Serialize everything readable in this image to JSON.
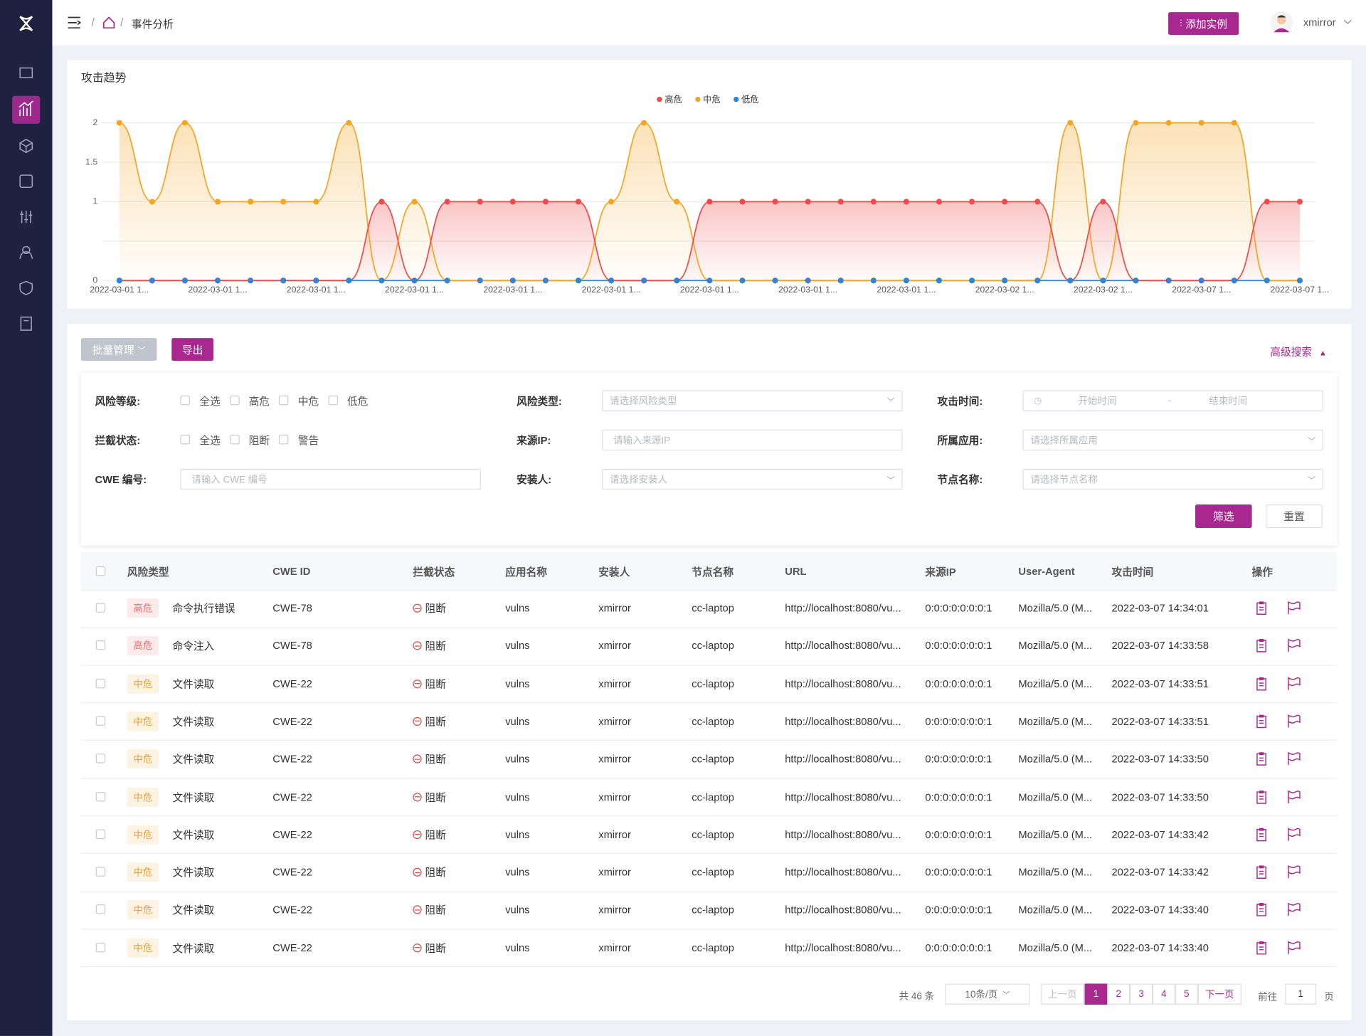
{
  "header": {
    "breadcrumb": "事件分析",
    "add_button": "添加实例",
    "user": "xmirror"
  },
  "chart_data": {
    "type": "line",
    "title": "攻击趋势",
    "categories": [
      "2022-03-01 1...",
      null,
      null,
      "2022-03-01 1...",
      null,
      null,
      "2022-03-01 1...",
      null,
      null,
      "2022-03-01 1...",
      null,
      null,
      "2022-03-01 1...",
      null,
      null,
      "2022-03-01 1...",
      null,
      null,
      "2022-03-01 1...",
      null,
      null,
      "2022-03-01 1...",
      null,
      null,
      "2022-03-01 1...",
      null,
      null,
      "2022-03-02 1...",
      null,
      null,
      "2022-03-02 1...",
      null,
      null,
      "2022-03-07 1...",
      null,
      null,
      "2022-03-07 1..."
    ],
    "series": [
      {
        "name": "高危",
        "color": "#ee4b4b",
        "values": [
          0,
          0,
          0,
          0,
          0,
          0,
          0,
          0,
          1,
          0,
          1,
          1,
          1,
          1,
          1,
          0,
          0,
          0,
          1,
          1,
          1,
          1,
          1,
          1,
          1,
          1,
          1,
          1,
          1,
          0,
          1,
          0,
          0,
          0,
          0,
          1,
          1
        ]
      },
      {
        "name": "中危",
        "color": "#f5a524",
        "values": [
          2,
          1,
          2,
          1,
          1,
          1,
          1,
          2,
          0,
          1,
          0,
          0,
          0,
          0,
          0,
          1,
          2,
          1,
          0,
          0,
          0,
          0,
          0,
          0,
          0,
          0,
          0,
          0,
          0,
          2,
          0,
          2,
          2,
          2,
          2,
          0,
          0
        ]
      },
      {
        "name": "低危",
        "color": "#2b86e0",
        "values": [
          0,
          0,
          0,
          0,
          0,
          0,
          0,
          0,
          0,
          0,
          0,
          0,
          0,
          0,
          0,
          0,
          0,
          0,
          0,
          0,
          0,
          0,
          0,
          0,
          0,
          0,
          0,
          0,
          0,
          0,
          0,
          0,
          0,
          0,
          0,
          0,
          0
        ]
      }
    ],
    "ylim": [
      0,
      2
    ],
    "yticks": [
      0,
      1,
      1.5,
      2
    ],
    "grid_values": [
      0,
      0.5,
      1,
      1.5,
      2
    ],
    "grid": true,
    "legend": "top",
    "smooth": true
  },
  "toolbar": {
    "batch": "批量管理",
    "export": "导出",
    "advanced": "高级搜索"
  },
  "filters": {
    "risk_level": {
      "label": "风险等级:",
      "options": [
        "全选",
        "高危",
        "中危",
        "低危"
      ]
    },
    "intercept": {
      "label": "拦截状态:",
      "options": [
        "全选",
        "阻断",
        "警告"
      ]
    },
    "cwe": {
      "label": "CWE 编号:",
      "placeholder": "请输入 CWE 编号"
    },
    "risk_type": {
      "label": "风险类型:",
      "placeholder": "请选择风险类型"
    },
    "source_ip": {
      "label": "来源IP:",
      "placeholder": "请输入来源IP"
    },
    "installer": {
      "label": "安装人:",
      "placeholder": "请选择安装人"
    },
    "attack_time": {
      "label": "攻击时间:",
      "start": "开始时间",
      "sep": "-",
      "end": "结束时间"
    },
    "app": {
      "label": "所属应用:",
      "placeholder": "请选择所属应用"
    },
    "node": {
      "label": "节点名称:",
      "placeholder": "请选择节点名称"
    },
    "filter_button": "筛选",
    "reset_button": "重置"
  },
  "table": {
    "columns": [
      "风险类型",
      "CWE ID",
      "拦截状态",
      "应用名称",
      "安装人",
      "节点名称",
      "URL",
      "来源IP",
      "User-Agent",
      "攻击时间",
      "操作"
    ],
    "level_styles": [
      {
        "label": "高危",
        "color": "#f56c6c",
        "bg": "#fdeaea"
      },
      {
        "label": "中危",
        "color": "#e6a23c",
        "bg": "#fdf3e3"
      }
    ],
    "rows": [
      [
        "高危",
        "命令执行错误",
        "CWE-78",
        "阻断",
        "vulns",
        "xmirror",
        "cc-laptop",
        "http://localhost:8080/vu...",
        "0:0:0:0:0:0:0:1",
        "Mozilla/5.0 (M...",
        "2022-03-07 14:34:01"
      ],
      [
        "高危",
        "命令注入",
        "CWE-78",
        "阻断",
        "vulns",
        "xmirror",
        "cc-laptop",
        "http://localhost:8080/vu...",
        "0:0:0:0:0:0:0:1",
        "Mozilla/5.0 (M...",
        "2022-03-07 14:33:58"
      ],
      [
        "中危",
        "文件读取",
        "CWE-22",
        "阻断",
        "vulns",
        "xmirror",
        "cc-laptop",
        "http://localhost:8080/vu...",
        "0:0:0:0:0:0:0:1",
        "Mozilla/5.0 (M...",
        "2022-03-07 14:33:51"
      ],
      [
        "中危",
        "文件读取",
        "CWE-22",
        "阻断",
        "vulns",
        "xmirror",
        "cc-laptop",
        "http://localhost:8080/vu...",
        "0:0:0:0:0:0:0:1",
        "Mozilla/5.0 (M...",
        "2022-03-07 14:33:51"
      ],
      [
        "中危",
        "文件读取",
        "CWE-22",
        "阻断",
        "vulns",
        "xmirror",
        "cc-laptop",
        "http://localhost:8080/vu...",
        "0:0:0:0:0:0:0:1",
        "Mozilla/5.0 (M...",
        "2022-03-07 14:33:50"
      ],
      [
        "中危",
        "文件读取",
        "CWE-22",
        "阻断",
        "vulns",
        "xmirror",
        "cc-laptop",
        "http://localhost:8080/vu...",
        "0:0:0:0:0:0:0:1",
        "Mozilla/5.0 (M...",
        "2022-03-07 14:33:50"
      ],
      [
        "中危",
        "文件读取",
        "CWE-22",
        "阻断",
        "vulns",
        "xmirror",
        "cc-laptop",
        "http://localhost:8080/vu...",
        "0:0:0:0:0:0:0:1",
        "Mozilla/5.0 (M...",
        "2022-03-07 14:33:42"
      ],
      [
        "中危",
        "文件读取",
        "CWE-22",
        "阻断",
        "vulns",
        "xmirror",
        "cc-laptop",
        "http://localhost:8080/vu...",
        "0:0:0:0:0:0:0:1",
        "Mozilla/5.0 (M...",
        "2022-03-07 14:33:42"
      ],
      [
        "中危",
        "文件读取",
        "CWE-22",
        "阻断",
        "vulns",
        "xmirror",
        "cc-laptop",
        "http://localhost:8080/vu...",
        "0:0:0:0:0:0:0:1",
        "Mozilla/5.0 (M...",
        "2022-03-07 14:33:40"
      ],
      [
        "中危",
        "文件读取",
        "CWE-22",
        "阻断",
        "vulns",
        "xmirror",
        "cc-laptop",
        "http://localhost:8080/vu...",
        "0:0:0:0:0:0:0:1",
        "Mozilla/5.0 (M...",
        "2022-03-07 14:33:40"
      ]
    ]
  },
  "pagination": {
    "total": "共 46 条",
    "page_size": "10条/页",
    "prev": "上一页",
    "pages": [
      1,
      2,
      3,
      4,
      5
    ],
    "active_index": 0,
    "next": "下一页",
    "goto": "前往",
    "goto_value": 1,
    "goto_unit": "页"
  }
}
